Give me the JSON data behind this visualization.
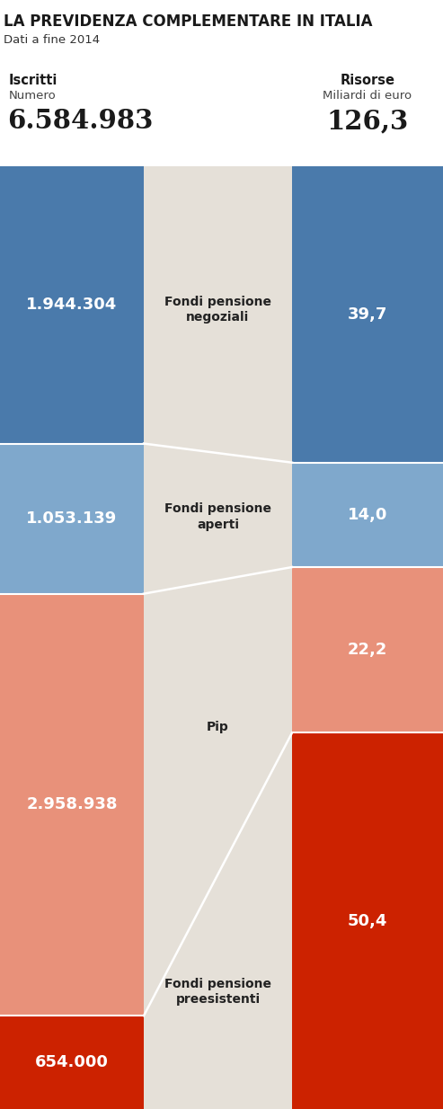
{
  "title": "LA PREVIDENZA COMPLEMENTARE IN ITALIA",
  "subtitle": "Dati a fine 2014",
  "col_left_label": "Iscritti",
  "col_left_sublabel": "Numero",
  "col_right_label": "Risorse",
  "col_right_sublabel": "Miliardi di euro",
  "total_iscritti": "6.584.983",
  "total_risorse": "126,3",
  "categories": [
    {
      "name": "Fondi pensione\nnegoziali",
      "iscritti": 1944304,
      "iscritti_label": "1.944.304",
      "risorse": 39.7,
      "risorse_label": "39,7",
      "color_left": "#4a7aab",
      "color_right": "#4a7aab"
    },
    {
      "name": "Fondi pensione\naperti",
      "iscritti": 1053139,
      "iscritti_label": "1.053.139",
      "risorse": 14.0,
      "risorse_label": "14,0",
      "color_left": "#7fa8cc",
      "color_right": "#7fa8cc"
    },
    {
      "name": "Pip",
      "iscritti": 2958938,
      "iscritti_label": "2.958.938",
      "risorse": 22.2,
      "risorse_label": "22,2",
      "color_left": "#e8917a",
      "color_right": "#e8917a"
    },
    {
      "name": "Fondi pensione\npreesistenti",
      "iscritti": 654000,
      "iscritti_label": "654.000",
      "risorse": 50.4,
      "risorse_label": "50,4",
      "color_left": "#cc2200",
      "color_right": "#cc2200"
    }
  ],
  "mid_color": "#e5e0d8",
  "line_color": "#ffffff",
  "fig_bg": "#ffffff",
  "title_fontsize": 12,
  "subtitle_fontsize": 9.5,
  "value_fontsize": 13,
  "total_fontsize": 21,
  "col_header_fontsize": 10.5,
  "mid_label_fontsize": 10
}
